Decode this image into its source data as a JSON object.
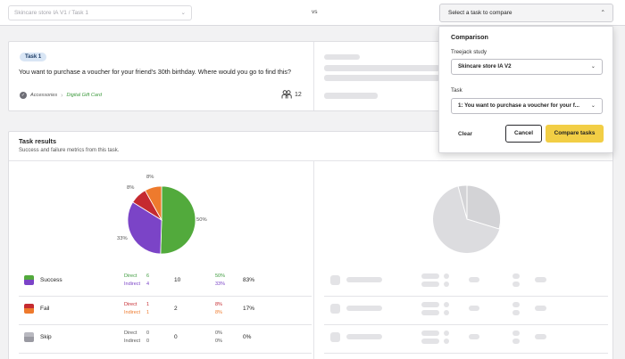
{
  "topbar": {
    "left_select_value": "Skincare store IA V1 / Task 1",
    "vs_label": "vs",
    "right_select_placeholder": "Select a task to compare"
  },
  "task": {
    "badge": "Task 1",
    "question": "You want to purchase a voucher for your friend's 30th birthday. Where would you go to find this?",
    "path_category": "Accessories",
    "path_destination": "Digital Gift Card",
    "participants": "12"
  },
  "results": {
    "title": "Task results",
    "subtitle": "Success and failure metrics from this task.",
    "direct_label": "Direct",
    "indirect_label": "Indirect",
    "rows": [
      {
        "name": "Success",
        "direct": "6",
        "indirect": "4",
        "total": "10",
        "direct_pct": "50%",
        "indirect_pct": "33%",
        "total_pct": "83%"
      },
      {
        "name": "Fail",
        "direct": "1",
        "indirect": "1",
        "total": "2",
        "direct_pct": "8%",
        "indirect_pct": "8%",
        "total_pct": "17%"
      },
      {
        "name": "Skip",
        "direct": "0",
        "indirect": "0",
        "total": "0",
        "direct_pct": "0%",
        "indirect_pct": "0%",
        "total_pct": "0%"
      }
    ],
    "pie_labels": {
      "green": "50%",
      "purple": "33%",
      "red": "8%",
      "orange": "8%"
    }
  },
  "chart_data": {
    "type": "pie",
    "categories": [
      "Direct success",
      "Indirect success",
      "Direct fail",
      "Indirect fail"
    ],
    "values": [
      50,
      33,
      8,
      8
    ],
    "colors": [
      "#52aa3c",
      "#7b44c7",
      "#c52a30",
      "#ee7a2d"
    ]
  },
  "colors": {
    "success_direct": "#52aa3c",
    "success_indirect": "#7b44c7",
    "fail_direct": "#c52a30",
    "fail_indirect": "#ee7a2d",
    "skip": "#a4a4ac",
    "compare_button": "#f2ce45"
  },
  "compare_panel": {
    "title": "Comparison",
    "study_label": "Treejack study",
    "study_value": "Skincare store IA V2",
    "task_label": "Task",
    "task_value": "1: You want to purchase a voucher for your f...",
    "clear_label": "Clear",
    "cancel_label": "Cancel",
    "compare_label": "Compare tasks"
  },
  "icons": {
    "select_chevron": "chevron-down-icon",
    "select_chevron_open": "chevron-up-icon",
    "path_check": "check-circle-icon",
    "participants": "people-icon"
  }
}
